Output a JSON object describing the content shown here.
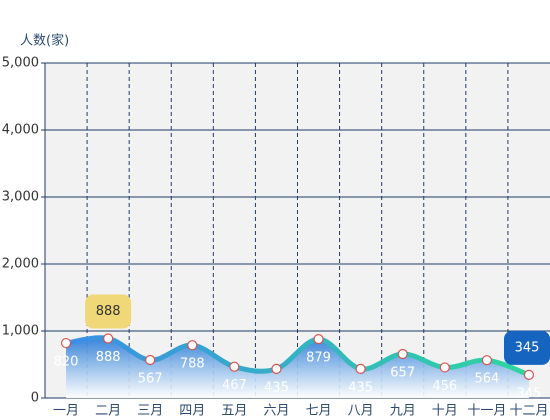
{
  "chart_data": {
    "type": "line",
    "y_axis_label": "人数(家)",
    "categories": [
      "一月",
      "二月",
      "三月",
      "四月",
      "五月",
      "六月",
      "七月",
      "八月",
      "九月",
      "十月",
      "十一月",
      "十二月"
    ],
    "series": [
      {
        "values": [
          820,
          888,
          567,
          788,
          467,
          435,
          879,
          435,
          657,
          456,
          564,
          345
        ],
        "colors": [
          "#3a8ee6",
          "#2fd6a0"
        ]
      }
    ],
    "mark_points": [
      {
        "x": "二月",
        "value": 888,
        "color": "#f0d878",
        "text_color": "#333"
      },
      {
        "x": "十二月",
        "value": 345,
        "color": "#1565c0",
        "text_color": "#fff"
      }
    ],
    "ylim": [
      0,
      5000
    ],
    "yticks": [
      0,
      {
        "value": 1000,
        "label": "1,000"
      },
      {
        "value": 2000,
        "label": "2,000"
      },
      {
        "value": 3000,
        "label": "3,000"
      },
      {
        "value": 4000,
        "label": "4,000"
      },
      {
        "value": 5000,
        "label": "5,000"
      }
    ],
    "grid": true,
    "smooth": true
  }
}
